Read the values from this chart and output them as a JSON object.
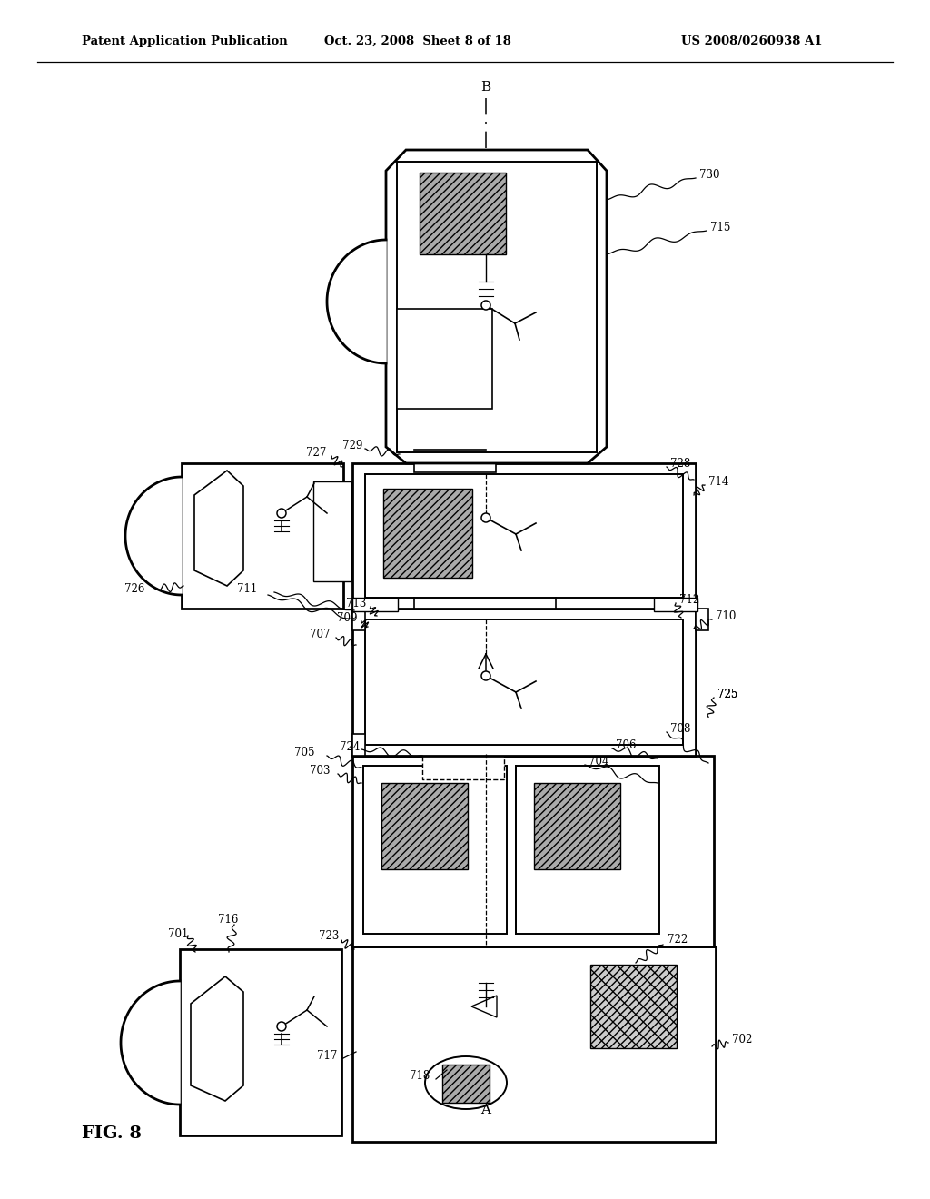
{
  "bg": "#ffffff",
  "header_left": "Patent Application Publication",
  "header_mid": "Oct. 23, 2008  Sheet 8 of 18",
  "header_right": "US 2008/0260938 A1",
  "fig_label": "FIG. 8"
}
